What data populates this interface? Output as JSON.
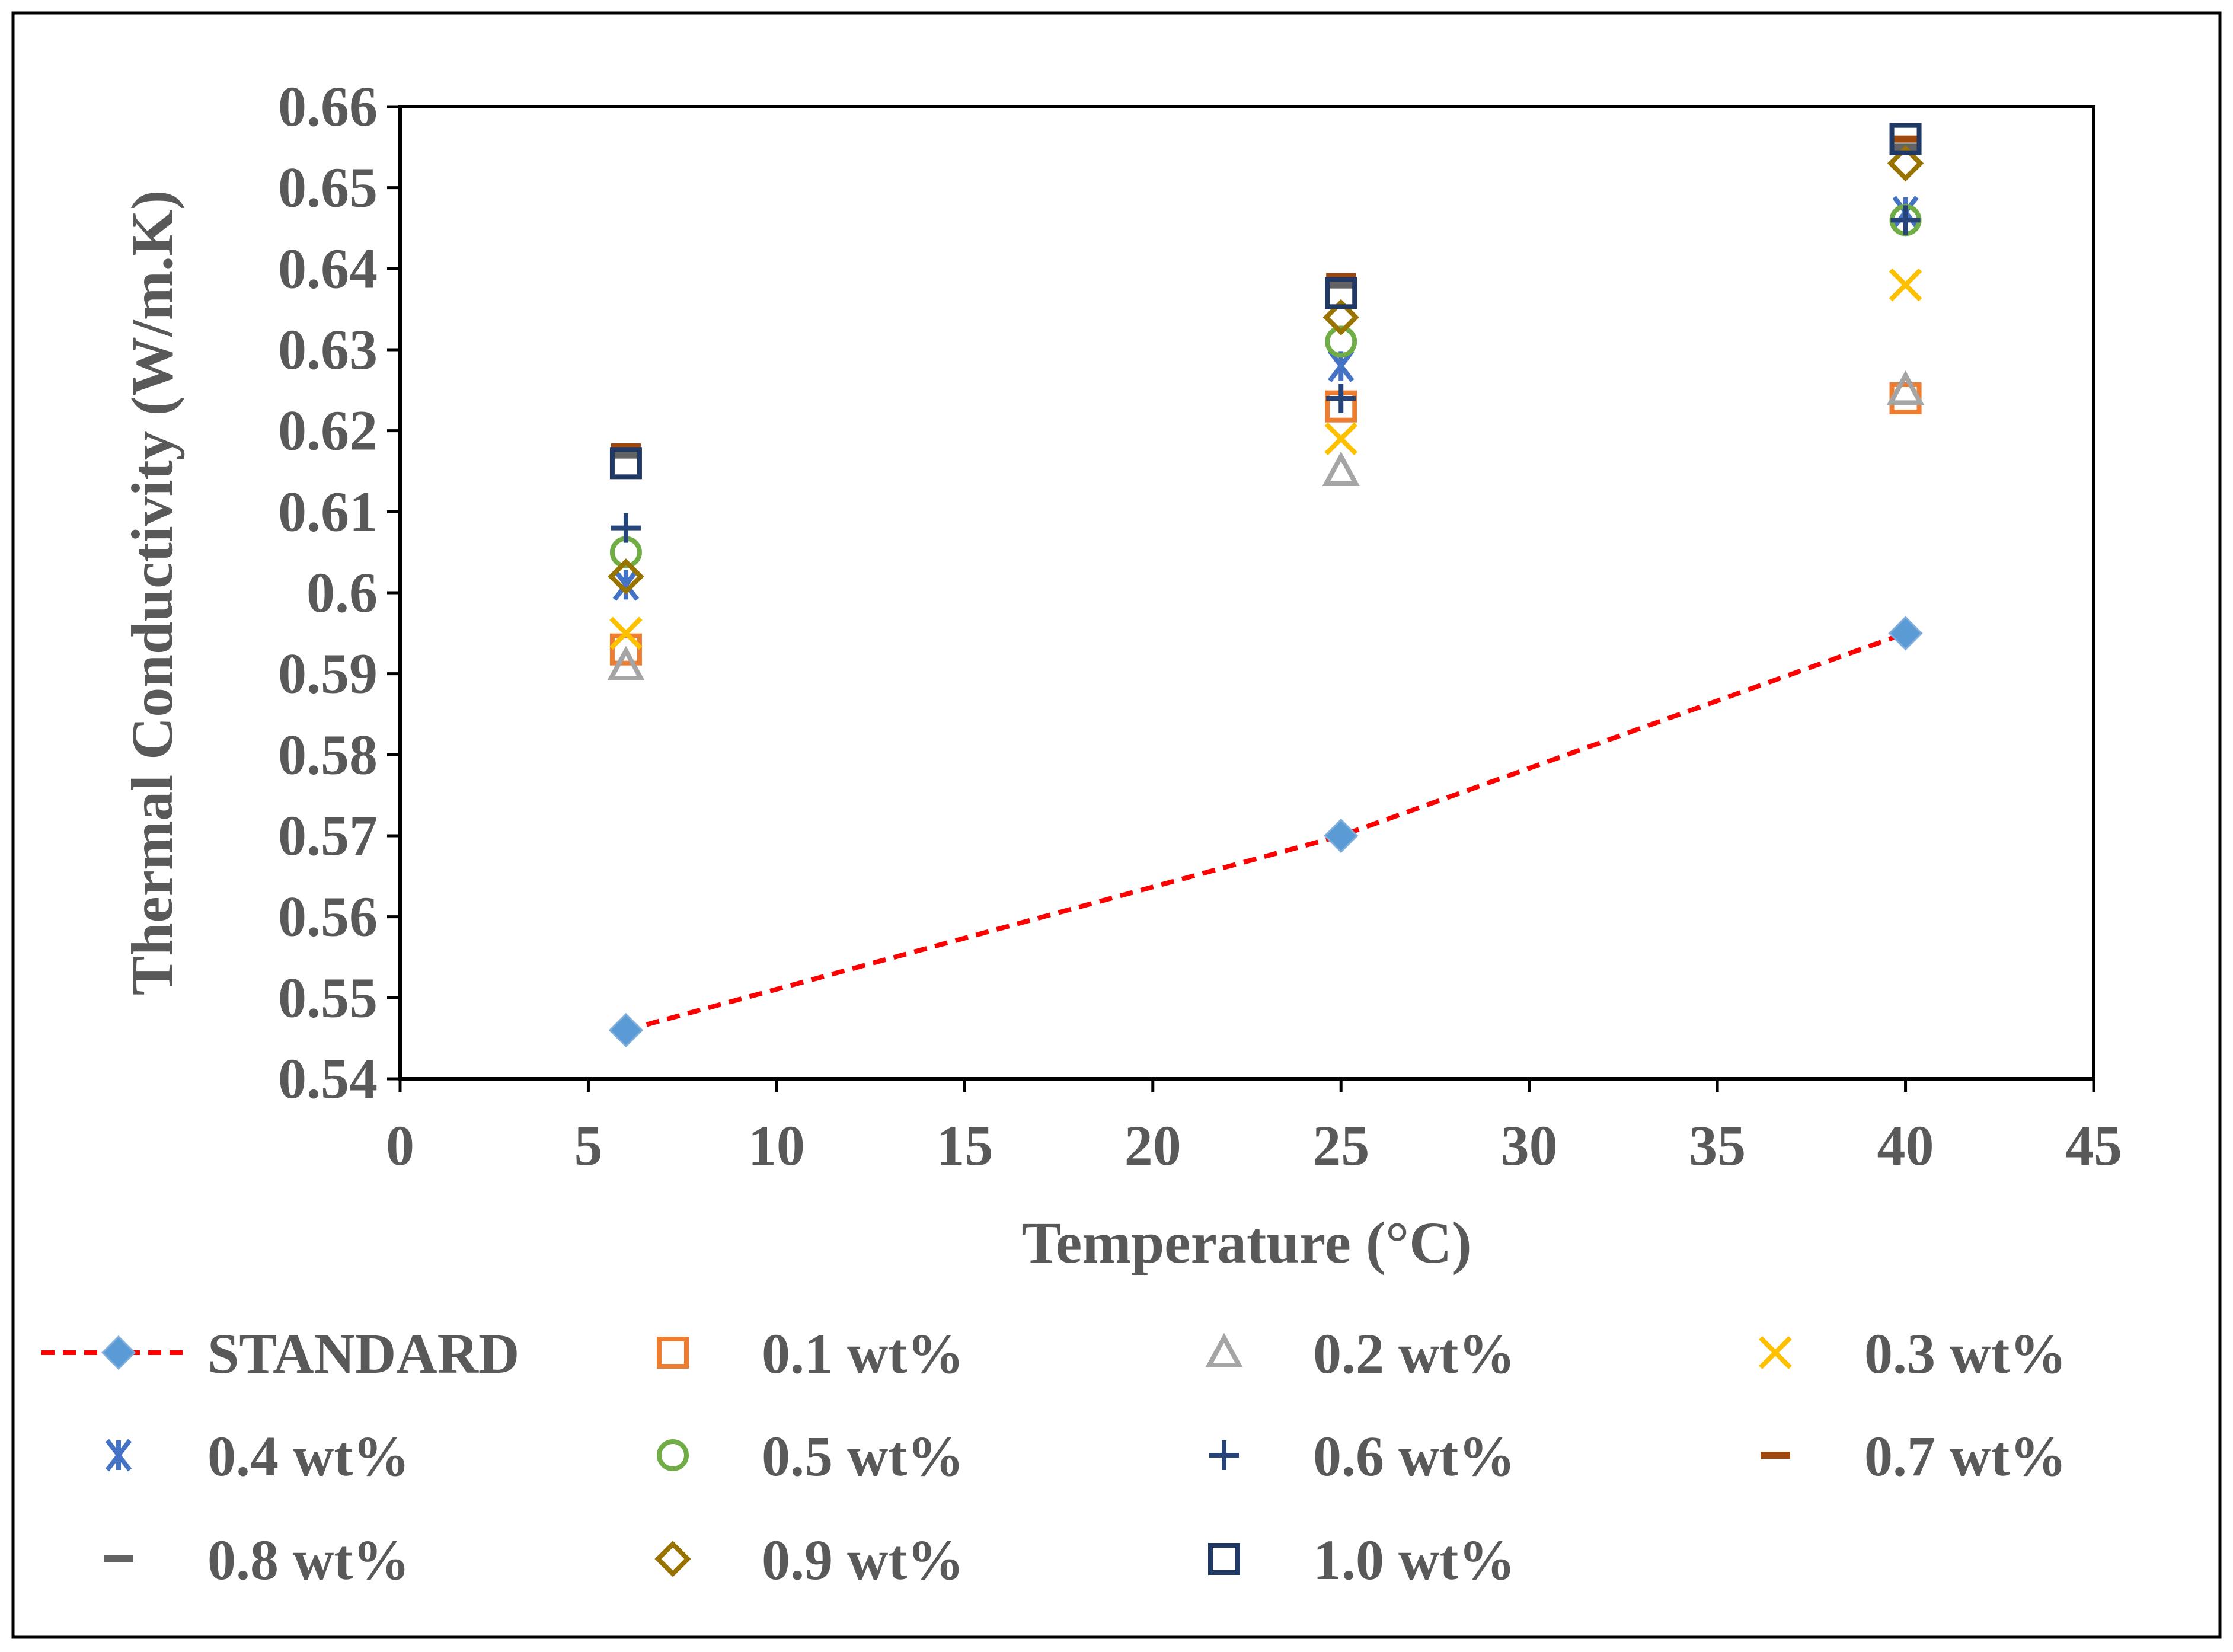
{
  "chart_data": {
    "type": "scatter",
    "title": "",
    "xlabel": "Temperature (°C)",
    "ylabel": "Thermal Conductivity (W/m.K)",
    "xlim": [
      0,
      45
    ],
    "ylim": [
      0.54,
      0.66
    ],
    "x_ticks": [
      "0",
      "5",
      "10",
      "15",
      "20",
      "25",
      "30",
      "35",
      "40",
      "45"
    ],
    "y_ticks": [
      "0.54",
      "0.55",
      "0.56",
      "0.57",
      "0.58",
      "0.59",
      "0.6",
      "0.61",
      "0.62",
      "0.63",
      "0.64",
      "0.65",
      "0.66"
    ],
    "grid": false,
    "legend_position": "bottom",
    "x": [
      6,
      25,
      40
    ],
    "series": [
      {
        "name": "STANDARD",
        "marker": "diamond",
        "color": "#5B9BD5",
        "line": true,
        "line_color": "#FF0000",
        "values": [
          0.546,
          0.57,
          0.595
        ]
      },
      {
        "name": "0.1 wt%",
        "marker": "square",
        "color": "#ED7D31",
        "values": [
          0.593,
          0.623,
          0.624
        ]
      },
      {
        "name": "0.2 wt%",
        "marker": "triangle",
        "color": "#A5A5A5",
        "values": [
          0.591,
          0.615,
          0.625
        ]
      },
      {
        "name": "0.3 wt%",
        "marker": "x",
        "color": "#FFC000",
        "values": [
          0.595,
          0.619,
          0.638
        ]
      },
      {
        "name": "0.4 wt%",
        "marker": "star",
        "color": "#4472C4",
        "values": [
          0.601,
          0.628,
          0.647
        ]
      },
      {
        "name": "0.5 wt%",
        "marker": "circle",
        "color": "#70AD47",
        "values": [
          0.605,
          0.631,
          0.646
        ]
      },
      {
        "name": "0.6 wt%",
        "marker": "plus",
        "color": "#264478",
        "values": [
          0.608,
          0.624,
          0.646
        ]
      },
      {
        "name": "0.7 wt%",
        "marker": "dash",
        "color": "#9E480E",
        "values": [
          0.618,
          0.639,
          0.656
        ]
      },
      {
        "name": "0.8 wt%",
        "marker": "dash",
        "color": "#636363",
        "values": [
          0.617,
          0.638,
          0.655
        ]
      },
      {
        "name": "0.9 wt%",
        "marker": "diamond-open",
        "color": "#997300",
        "values": [
          0.602,
          0.634,
          0.653
        ]
      },
      {
        "name": "1.0 wt%",
        "marker": "square",
        "color": "#1F3864",
        "values": [
          0.616,
          0.637,
          0.656
        ]
      }
    ]
  }
}
